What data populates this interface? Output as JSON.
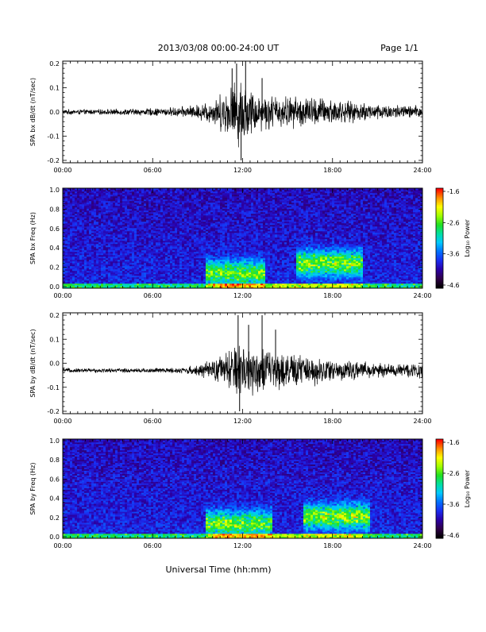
{
  "header": {
    "title": "2013/03/08  00:00-24:00 UT",
    "page": "Page 1/1"
  },
  "xlabel": "Universal Time (hh:mm)",
  "colorbar_label": "Log₁₀ Power",
  "colorbar_ticks": [
    "-1.6",
    "-2.6",
    "-3.6",
    "-4.6"
  ],
  "colors": {
    "colormap": [
      "#000000",
      "#30004a",
      "#2a00a8",
      "#1a2cf0",
      "#0070ff",
      "#00c8ff",
      "#00e0a0",
      "#20e020",
      "#a0ff00",
      "#ffff00",
      "#ff9000",
      "#ff0000"
    ]
  },
  "chart_data": [
    {
      "type": "line",
      "ylabel": "SPA bx dB/dt (nT/sec)",
      "x_ticks": [
        "00:00",
        "06:00",
        "12:00",
        "18:00",
        "24:00"
      ],
      "y_ticks": [
        "0.2",
        "0.1",
        "0.0",
        "-0.1",
        "-0.2"
      ],
      "ylim": [
        -0.21,
        0.21
      ],
      "xlim": [
        0,
        24
      ],
      "baseline": 0.0,
      "envelope_hours": [
        0,
        2,
        4,
        6,
        7,
        8,
        9,
        10,
        11,
        11.5,
        12,
        12.5,
        13,
        14,
        15,
        16,
        17,
        18,
        19,
        20,
        22,
        24
      ],
      "envelope_amplitude": [
        0.012,
        0.012,
        0.014,
        0.018,
        0.02,
        0.025,
        0.035,
        0.06,
        0.11,
        0.15,
        0.16,
        0.11,
        0.09,
        0.08,
        0.075,
        0.075,
        0.07,
        0.065,
        0.05,
        0.045,
        0.035,
        0.03
      ],
      "spikes": [
        {
          "x": 11.6,
          "y": 0.2
        },
        {
          "x": 11.9,
          "y": -0.2
        },
        {
          "x": 12.2,
          "y": 0.21
        },
        {
          "x": 11.3,
          "y": 0.18
        },
        {
          "x": 13.3,
          "y": 0.14
        }
      ]
    },
    {
      "type": "heatmap",
      "ylabel": "SPA bx Freq (Hz)",
      "x_ticks": [
        "00:00",
        "06:00",
        "12:00",
        "18:00",
        "24:00"
      ],
      "y_ticks": [
        "1.0",
        "0.8",
        "0.6",
        "0.4",
        "0.2",
        "0.0"
      ],
      "ylim": [
        0,
        1.0
      ],
      "xlim": [
        0,
        24
      ],
      "colorbar_range": [
        -4.6,
        -1.6
      ],
      "active_regions": [
        {
          "x_from": 9.5,
          "x_to": 13.5,
          "f_peak": 0.15,
          "strength": 0.55
        },
        {
          "x_from": 15.5,
          "x_to": 20.0,
          "f_peak": 0.25,
          "strength": 0.6
        }
      ]
    },
    {
      "type": "line",
      "ylabel": "SPA by dB/dt (nT/sec)",
      "x_ticks": [
        "00:00",
        "06:00",
        "12:00",
        "18:00",
        "24:00"
      ],
      "y_ticks": [
        "0.2",
        "0.1",
        "0.0",
        "-0.1",
        "-0.2"
      ],
      "ylim": [
        -0.21,
        0.21
      ],
      "xlim": [
        0,
        24
      ],
      "baseline": -0.03,
      "envelope_hours": [
        0,
        2,
        4,
        6,
        7,
        8,
        9,
        10,
        11,
        11.5,
        12,
        12.5,
        13,
        14,
        15,
        16,
        17,
        18,
        19,
        20,
        22,
        24
      ],
      "envelope_amplitude": [
        0.01,
        0.01,
        0.01,
        0.012,
        0.012,
        0.015,
        0.025,
        0.05,
        0.09,
        0.12,
        0.14,
        0.12,
        0.11,
        0.095,
        0.08,
        0.075,
        0.065,
        0.055,
        0.045,
        0.04,
        0.03,
        0.04
      ],
      "spikes": [
        {
          "x": 11.7,
          "y": 0.2
        },
        {
          "x": 11.8,
          "y": -0.2
        },
        {
          "x": 13.3,
          "y": 0.2
        },
        {
          "x": 12.4,
          "y": 0.16
        },
        {
          "x": 14.2,
          "y": 0.14
        }
      ]
    },
    {
      "type": "heatmap",
      "ylabel": "SPA by Freq (Hz)",
      "x_ticks": [
        "00:00",
        "06:00",
        "12:00",
        "18:00",
        "24:00"
      ],
      "y_ticks": [
        "1.0",
        "0.8",
        "0.6",
        "0.4",
        "0.2",
        "0.0"
      ],
      "ylim": [
        0,
        1.0
      ],
      "xlim": [
        0,
        24
      ],
      "colorbar_range": [
        -4.6,
        -1.6
      ],
      "active_regions": [
        {
          "x_from": 9.5,
          "x_to": 14.0,
          "f_peak": 0.15,
          "strength": 0.55
        },
        {
          "x_from": 16.0,
          "x_to": 20.5,
          "f_peak": 0.22,
          "strength": 0.6
        }
      ]
    }
  ]
}
